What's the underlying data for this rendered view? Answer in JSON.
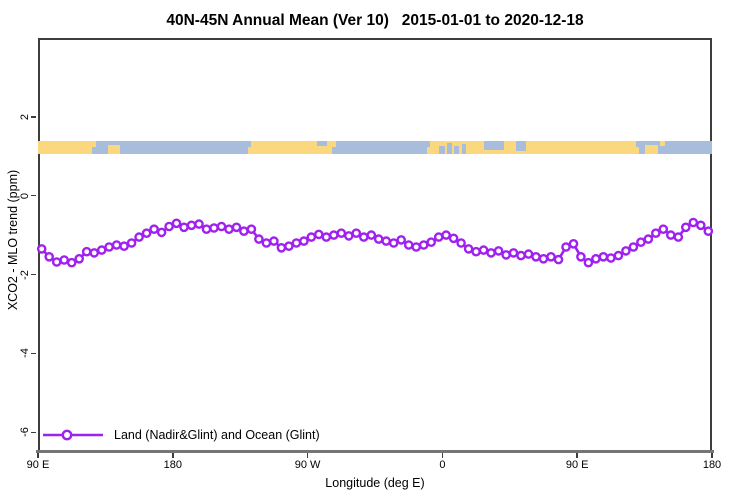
{
  "title": "40N-45N Annual Mean (Ver 10)   2015-01-01 to 2020-12-18",
  "legend": {
    "label": "Land (Nadir&Glint) and Ocean (Glint)"
  },
  "colors": {
    "series": "#A020F0",
    "marker_fill": "#FFFFFF",
    "land": "#FBD87E",
    "ocean": "#A8BDDB",
    "axis_box": "#3D3D3D",
    "baseline": "#757575",
    "text": "#000000"
  },
  "chart_data": {
    "type": "line",
    "title": "40N-45N Annual Mean (Ver 10)   2015-01-01 to 2020-12-18",
    "xlabel": "Longitude (deg E)",
    "ylabel": "XCO2 - MLO trend (ppm)",
    "xlim": [
      90,
      540
    ],
    "ylim": [
      -6.5,
      4.0
    ],
    "grid": false,
    "legend_position": "bottom-left",
    "x_ticks": [
      {
        "v": 90,
        "label": "90 E"
      },
      {
        "v": 180,
        "label": "180"
      },
      {
        "v": 270,
        "label": "90 W"
      },
      {
        "v": 360,
        "label": "0"
      },
      {
        "v": 450,
        "label": "90 E"
      },
      {
        "v": 540,
        "label": "180"
      }
    ],
    "y_ticks": [
      {
        "v": 2,
        "label": "2"
      },
      {
        "v": 0,
        "label": "0"
      },
      {
        "v": -2,
        "label": "-2"
      },
      {
        "v": -4,
        "label": "-4"
      },
      {
        "v": -6,
        "label": "-6"
      }
    ],
    "series": [
      {
        "name": "Land (Nadir&Glint) and Ocean (Glint)",
        "color": "#A020F0",
        "marker": "open-circle",
        "x_unit": "degrees longitude, continuing eastward from 90E",
        "x_start": 92.5,
        "x_step": 5,
        "values": [
          -1.35,
          -1.55,
          -1.68,
          -1.63,
          -1.7,
          -1.6,
          -1.42,
          -1.45,
          -1.38,
          -1.3,
          -1.25,
          -1.28,
          -1.2,
          -1.05,
          -0.95,
          -0.85,
          -0.93,
          -0.78,
          -0.7,
          -0.8,
          -0.75,
          -0.72,
          -0.85,
          -0.82,
          -0.78,
          -0.85,
          -0.8,
          -0.9,
          -0.85,
          -1.1,
          -1.2,
          -1.15,
          -1.32,
          -1.28,
          -1.2,
          -1.15,
          -1.05,
          -0.98,
          -1.05,
          -1.0,
          -0.95,
          -1.02,
          -0.95,
          -1.05,
          -1.0,
          -1.1,
          -1.15,
          -1.2,
          -1.12,
          -1.25,
          -1.3,
          -1.25,
          -1.18,
          -1.05,
          -1.0,
          -1.08,
          -1.2,
          -1.35,
          -1.42,
          -1.38,
          -1.45,
          -1.4,
          -1.5,
          -1.45,
          -1.52,
          -1.48,
          -1.55,
          -1.6,
          -1.55,
          -1.62,
          -1.3,
          -1.22,
          -1.55,
          -1.7,
          -1.6,
          -1.55,
          -1.58,
          -1.52,
          -1.4,
          -1.3,
          -1.18,
          -1.1,
          -0.95,
          -0.85,
          -1.0,
          -1.05,
          -0.8,
          -0.68,
          -0.75,
          -0.9
        ]
      }
    ],
    "map_band": {
      "description": "land/ocean strip map of the 40N-45N latitude zone drawn across the plot",
      "ppm_top": 1.4,
      "ppm_bottom": 1.07,
      "base": "land",
      "overlays": [
        {
          "from": 126,
          "to": 128.5,
          "type": "ocean",
          "side": "bottom",
          "frac": 0.5
        },
        {
          "from": 128.5,
          "to": 232.5,
          "type": "ocean",
          "side": "full",
          "frac": 1
        },
        {
          "from": 137,
          "to": 145,
          "type": "land",
          "side": "bottom",
          "frac": 0.65
        },
        {
          "from": 230,
          "to": 232.5,
          "type": "land",
          "side": "bottom",
          "frac": 0.5
        },
        {
          "from": 276,
          "to": 283,
          "type": "ocean",
          "side": "top",
          "frac": 0.45
        },
        {
          "from": 286,
          "to": 349.5,
          "type": "ocean",
          "side": "full",
          "frac": 1
        },
        {
          "from": 286,
          "to": 289,
          "type": "land",
          "side": "top",
          "frac": 0.5
        },
        {
          "from": 349.5,
          "to": 352,
          "type": "ocean",
          "side": "top",
          "frac": 0.5
        },
        {
          "from": 358,
          "to": 361.5,
          "type": "ocean",
          "side": "bottom",
          "frac": 0.55
        },
        {
          "from": 363,
          "to": 366.5,
          "type": "ocean",
          "side": "bottom",
          "frac": 0.8
        },
        {
          "from": 368,
          "to": 371,
          "type": "ocean",
          "side": "bottom",
          "frac": 0.55
        },
        {
          "from": 373,
          "to": 376,
          "type": "ocean",
          "side": "bottom",
          "frac": 0.75
        },
        {
          "from": 388,
          "to": 401,
          "type": "ocean",
          "side": "top",
          "frac": 0.75
        },
        {
          "from": 409,
          "to": 416,
          "type": "ocean",
          "side": "top",
          "frac": 0.8
        },
        {
          "from": 489,
          "to": 491,
          "type": "ocean",
          "side": "top",
          "frac": 0.5
        },
        {
          "from": 491,
          "to": 540,
          "type": "ocean",
          "side": "full",
          "frac": 1
        },
        {
          "from": 495,
          "to": 504,
          "type": "land",
          "side": "bottom",
          "frac": 0.65
        },
        {
          "from": 505.5,
          "to": 508.5,
          "type": "land",
          "side": "top",
          "frac": 0.45
        }
      ]
    }
  }
}
